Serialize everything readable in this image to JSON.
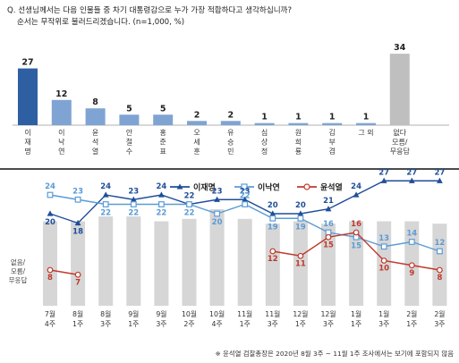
{
  "question": {
    "line1": "Q. 선생님께서는 다음 인물들 중 차기 대통령감으로 누가 가장 적합하다고 생각하십니까?",
    "line2": "순서는 무작위로 불러드리겠습니다. (n=1,000, %)"
  },
  "footnote": "※ 윤석열 검찰총장은 2020년 8월 3주 ~ 11월 1주 조사에서는 보기에 포함되지 않음",
  "colors": {
    "bar_main": "#2e5fa3",
    "bar_light": "#7fa4d3",
    "bar_gray": "#bfbfbf",
    "lee_jaemyung": "#1f4e99",
    "lee_nakyon": "#5b9bd5",
    "yoon": "#c0392b",
    "undecided_bar": "#d6d6d6"
  },
  "chart_data": [
    {
      "type": "bar",
      "categories": [
        "이재명",
        "이낙연",
        "윤석열",
        "안철수",
        "홍준표",
        "오세훈",
        "유승민",
        "심상정",
        "원희룡",
        "김부겸",
        "그 외",
        "없다/모름/무응답"
      ],
      "category_lines": [
        [
          "이",
          "재",
          "명"
        ],
        [
          "이",
          "낙",
          "연"
        ],
        [
          "윤",
          "석",
          "열"
        ],
        [
          "안",
          "철",
          "수"
        ],
        [
          "홍",
          "준",
          "표"
        ],
        [
          "오",
          "세",
          "훈"
        ],
        [
          "유",
          "승",
          "민"
        ],
        [
          "심",
          "상",
          "정"
        ],
        [
          "원",
          "희",
          "룡"
        ],
        [
          "김",
          "부",
          "겸"
        ],
        [
          "그 외"
        ],
        [
          "없다",
          "모름/",
          "무응답"
        ]
      ],
      "values": [
        27,
        12,
        8,
        5,
        5,
        2,
        2,
        1,
        1,
        1,
        1,
        34
      ],
      "value_labels": [
        "27",
        "12",
        "8",
        "5",
        "5",
        "2",
        "2",
        "1",
        "1",
        "1",
        "1",
        "34"
      ],
      "ylim": [
        0,
        40
      ]
    },
    {
      "type": "line",
      "x_lines": [
        [
          "7월",
          "4주"
        ],
        [
          "8월",
          "1주"
        ],
        [
          "8월",
          "3주"
        ],
        [
          "9월",
          "1주"
        ],
        [
          "9월",
          "3주"
        ],
        [
          "10월",
          "2주"
        ],
        [
          "10월",
          "4주"
        ],
        [
          "11월",
          "1주"
        ],
        [
          "11월",
          "3주"
        ],
        [
          "12월",
          "1주"
        ],
        [
          "12월",
          "3주"
        ],
        [
          "1월",
          "1주"
        ],
        [
          "1월",
          "3주"
        ],
        [
          "2월",
          "1주"
        ],
        [
          "2월",
          "3주"
        ]
      ],
      "series": [
        {
          "name": "이재명",
          "values": [
            20,
            18,
            24,
            23,
            24,
            22,
            23,
            23,
            20,
            20,
            21,
            24,
            27,
            27,
            27
          ]
        },
        {
          "name": "이낙연",
          "values": [
            24,
            23,
            22,
            22,
            22,
            22,
            20,
            22,
            19,
            19,
            16,
            15,
            13,
            14,
            12
          ]
        },
        {
          "name": "윤석열",
          "values": [
            8,
            7,
            null,
            null,
            null,
            null,
            null,
            null,
            12,
            11,
            15,
            16,
            10,
            9,
            8
          ]
        }
      ],
      "bar_series": {
        "label_lines": [
          "없음/",
          "모름/",
          "무응답"
        ],
        "values": [
          35,
          35,
          37,
          37,
          35,
          36,
          40,
          36,
          34,
          35,
          34,
          35,
          35,
          35,
          34
        ]
      },
      "legend": [
        "이재명",
        "이낙연",
        "윤석열"
      ],
      "legend_placement": "top-right",
      "ylim": [
        0,
        45
      ]
    }
  ]
}
